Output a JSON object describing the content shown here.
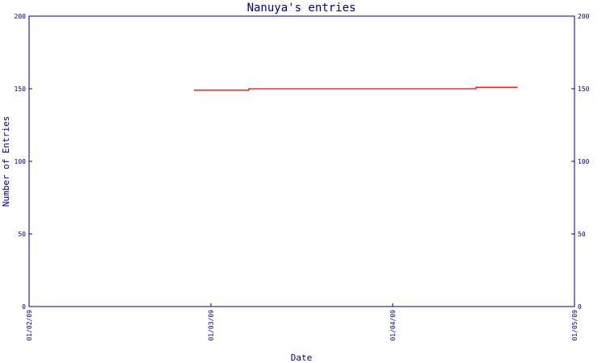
{
  "chart_data": {
    "type": "line",
    "title": "Nanuya's entries",
    "xlabel": "Date",
    "ylabel": "Number of Entries",
    "xlim": [
      "2009-01-02",
      "2009-01-05"
    ],
    "ylim": [
      0,
      200
    ],
    "y_ticks": [
      0,
      50,
      100,
      150,
      200
    ],
    "x_ticks": [
      "2009-01-02",
      "2009-01-03",
      "2009-01-04",
      "2009-01-05"
    ],
    "x_tick_labels": [
      "01/02/09",
      "01/03/09",
      "01/04/09",
      "01/05/09"
    ],
    "grid": false,
    "series": [
      {
        "color": "#ff0000",
        "points": [
          {
            "x": "2009-01-02T21:45",
            "y": 149
          },
          {
            "x": "2009-01-03T05:00",
            "y": 149
          },
          {
            "x": "2009-01-03T05:00",
            "y": 150
          },
          {
            "x": "2009-01-04T11:00",
            "y": 150
          },
          {
            "x": "2009-01-04T11:00",
            "y": 151
          },
          {
            "x": "2009-01-04T16:30",
            "y": 151
          }
        ]
      }
    ]
  },
  "colors": {
    "axis": "#000080",
    "text": "#000080",
    "series": "#ff0000",
    "background": "#ffffff"
  }
}
